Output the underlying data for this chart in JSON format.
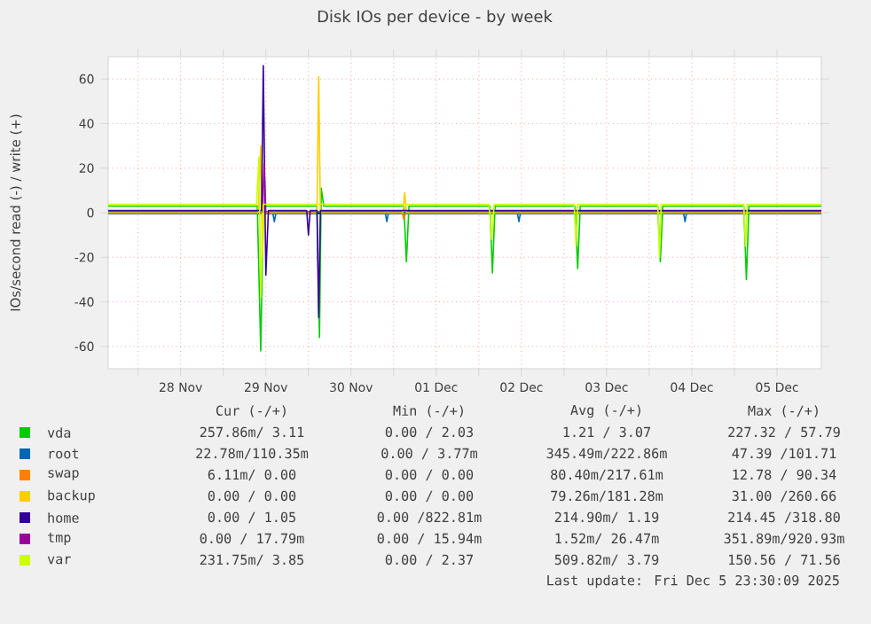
{
  "chart_data": {
    "type": "line",
    "title": "Disk IOs per device - by week",
    "ylabel": "IOs/second read (-) / write (+)",
    "xlim": [
      "2025-11-27T15:36",
      "2025-12-06T00:29"
    ],
    "ylim": [
      -70,
      70
    ],
    "xticks": [
      {
        "value": "2025-11-28T00:00",
        "label": null
      },
      {
        "value": "2025-11-28T12:00",
        "label": "28 Nov"
      },
      {
        "value": "2025-11-29T00:00",
        "label": null
      },
      {
        "value": "2025-11-29T12:00",
        "label": "29 Nov"
      },
      {
        "value": "2025-11-30T00:00",
        "label": null
      },
      {
        "value": "2025-11-30T12:00",
        "label": "30 Nov"
      },
      {
        "value": "2025-12-01T00:00",
        "label": null
      },
      {
        "value": "2025-12-01T12:00",
        "label": "01 Dec"
      },
      {
        "value": "2025-12-02T00:00",
        "label": null
      },
      {
        "value": "2025-12-02T12:00",
        "label": "02 Dec"
      },
      {
        "value": "2025-12-03T00:00",
        "label": null
      },
      {
        "value": "2025-12-03T12:00",
        "label": "03 Dec"
      },
      {
        "value": "2025-12-04T00:00",
        "label": null
      },
      {
        "value": "2025-12-04T12:00",
        "label": "04 Dec"
      },
      {
        "value": "2025-12-05T00:00",
        "label": null
      },
      {
        "value": "2025-12-05T12:00",
        "label": "05 Dec"
      }
    ],
    "yticks": [
      -60,
      -40,
      -20,
      0,
      20,
      40,
      60
    ],
    "grid": true,
    "legend": "bottom",
    "ref_lines": [
      {
        "axis": "y",
        "value": 0,
        "color": "#000000"
      }
    ],
    "series": [
      {
        "name": "vda",
        "color": "#00cc00",
        "x": [
          "2025-11-27T15:36",
          "2025-11-29T09:36",
          "2025-11-29T10:34",
          "2025-11-29T11:17",
          "2025-11-30T02:24",
          "2025-11-30T03:07",
          "2025-11-30T03:36",
          "2025-11-30T04:19",
          "2025-12-01T02:53",
          "2025-12-01T03:36",
          "2025-12-01T04:19",
          "2025-12-02T03:07",
          "2025-12-02T03:50",
          "2025-12-02T04:34",
          "2025-12-03T03:07",
          "2025-12-03T03:50",
          "2025-12-03T04:34",
          "2025-12-04T02:24",
          "2025-12-04T03:07",
          "2025-12-04T03:50",
          "2025-12-05T02:38",
          "2025-12-05T03:22",
          "2025-12-05T04:05",
          "2025-12-06T00:29"
        ],
        "values": [
          3,
          3,
          -62,
          3,
          3,
          -56,
          11,
          3,
          3,
          -22,
          3,
          3,
          -27,
          3,
          3,
          -25,
          3,
          3,
          -22,
          3,
          3,
          -30,
          3,
          3
        ]
      },
      {
        "name": "root",
        "color": "#0066b3",
        "x": [
          "2025-11-27T15:36",
          "2025-11-29T13:55",
          "2025-11-29T14:24",
          "2025-11-29T14:53",
          "2025-11-30T21:36",
          "2025-11-30T22:05",
          "2025-11-30T22:34",
          "2025-12-02T10:48",
          "2025-12-02T11:17",
          "2025-12-02T11:46",
          "2025-12-04T09:36",
          "2025-12-04T10:05",
          "2025-12-04T10:34",
          "2025-12-06T00:29"
        ],
        "values": [
          0.3,
          0.3,
          -4,
          0.3,
          0.3,
          -4,
          0.3,
          0.3,
          -4,
          0.3,
          0.3,
          -4,
          0.3,
          0.3
        ]
      },
      {
        "name": "swap",
        "color": "#ff8000",
        "x": [
          "2025-12-01T02:24",
          "2025-12-01T02:53",
          "2025-12-01T03:22"
        ],
        "values": [
          0,
          -3,
          0
        ]
      },
      {
        "name": "backup",
        "color": "#ffcc00",
        "x": [
          "2025-11-27T15:36",
          "2025-11-29T09:50",
          "2025-11-29T10:34",
          "2025-11-29T11:02",
          "2025-11-29T11:31",
          "2025-11-30T02:24",
          "2025-11-30T02:53",
          "2025-11-30T03:22",
          "2025-12-01T02:38",
          "2025-12-01T03:07",
          "2025-12-01T03:36",
          "2025-12-06T00:29"
        ],
        "values": [
          0,
          0,
          30,
          -20,
          0,
          0,
          61,
          0,
          0,
          9,
          0,
          0
        ]
      },
      {
        "name": "home",
        "color": "#330099",
        "x": [
          "2025-11-27T15:36",
          "2025-11-29T10:48",
          "2025-11-29T11:17",
          "2025-11-29T12:00",
          "2025-11-29T12:43",
          "2025-11-29T23:31",
          "2025-11-30T00:00",
          "2025-11-30T00:29",
          "2025-11-30T02:24",
          "2025-11-30T02:53",
          "2025-11-30T03:22",
          "2025-12-06T00:29"
        ],
        "values": [
          1,
          1,
          66,
          -28,
          1,
          1,
          -10,
          1,
          1,
          -47,
          1,
          1
        ]
      },
      {
        "name": "tmp",
        "color": "#990099",
        "x": [
          "2025-11-29T11:02",
          "2025-11-29T11:31",
          "2025-11-29T12:00"
        ],
        "values": [
          0,
          22,
          0
        ]
      },
      {
        "name": "var",
        "color": "#ccff00",
        "x": [
          "2025-11-27T15:36",
          "2025-11-29T09:22",
          "2025-11-29T10:05",
          "2025-11-29T10:34",
          "2025-11-29T11:17",
          "2025-12-02T02:53",
          "2025-12-02T03:36",
          "2025-12-02T04:19",
          "2025-12-03T02:53",
          "2025-12-03T03:22",
          "2025-12-03T03:50",
          "2025-12-04T02:24",
          "2025-12-04T02:53",
          "2025-12-04T03:22",
          "2025-12-05T02:38",
          "2025-12-05T03:07",
          "2025-12-05T03:36",
          "2025-12-06T00:29"
        ],
        "values": [
          3.8,
          3.8,
          25,
          -38,
          3.8,
          3.8,
          -12,
          3.8,
          3.8,
          -15,
          3.8,
          3.8,
          -20,
          3.8,
          3.8,
          -15,
          3.8,
          3.8
        ]
      }
    ],
    "annotations": [
      "Cur (-/+)",
      "Min (-/+)",
      "Avg (-/+)",
      "Max (-/+)",
      "257.86m/  3.11",
      "0.00 /  2.03",
      "1.21 /  3.07",
      "227.32 / 57.79",
      "22.78m/110.35m",
      "0.00 /  3.77m",
      "345.49m/222.86m",
      "47.39 /101.71",
      "6.11m/  0.00",
      "0.00 /  0.00",
      "80.40m/217.61m",
      "12.78 / 90.34",
      "0.00 /  0.00",
      "0.00 /  0.00",
      "79.26m/181.28m",
      "31.00 /260.66",
      "0.00 /  1.05",
      "0.00 /822.81m",
      "214.90m/  1.19",
      "214.45 /318.80",
      "0.00 / 17.79m",
      "0.00 / 15.94m",
      "1.52m/ 26.47m",
      "351.89m/920.93m",
      "231.75m/  3.85",
      "0.00 /  2.37",
      "509.82m/  3.79",
      "150.56 / 71.56",
      "Last update: Fri Dec  5 23:30:09 2025"
    ]
  }
}
